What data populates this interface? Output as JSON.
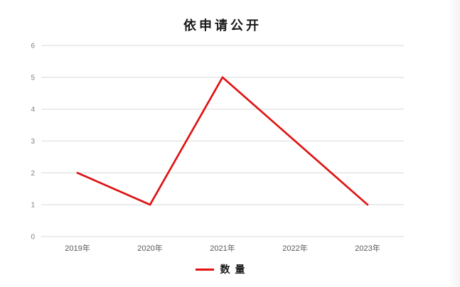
{
  "chart_data": {
    "type": "line",
    "title": "依申请公开",
    "categories": [
      "2019年",
      "2020年",
      "2021年",
      "2022年",
      "2023年"
    ],
    "series": [
      {
        "name": "数量",
        "values": [
          2,
          1,
          5,
          3,
          1
        ],
        "color": "#e01212"
      }
    ],
    "ylim": [
      0,
      6
    ],
    "ytick_step": 1,
    "yticks": [
      0,
      1,
      2,
      3,
      4,
      5,
      6
    ],
    "grid": true,
    "legend_position": "bottom",
    "gridline_color": "#d9d9d9",
    "y_label_color": "#7f7f7f",
    "x_label_color": "#595959"
  }
}
